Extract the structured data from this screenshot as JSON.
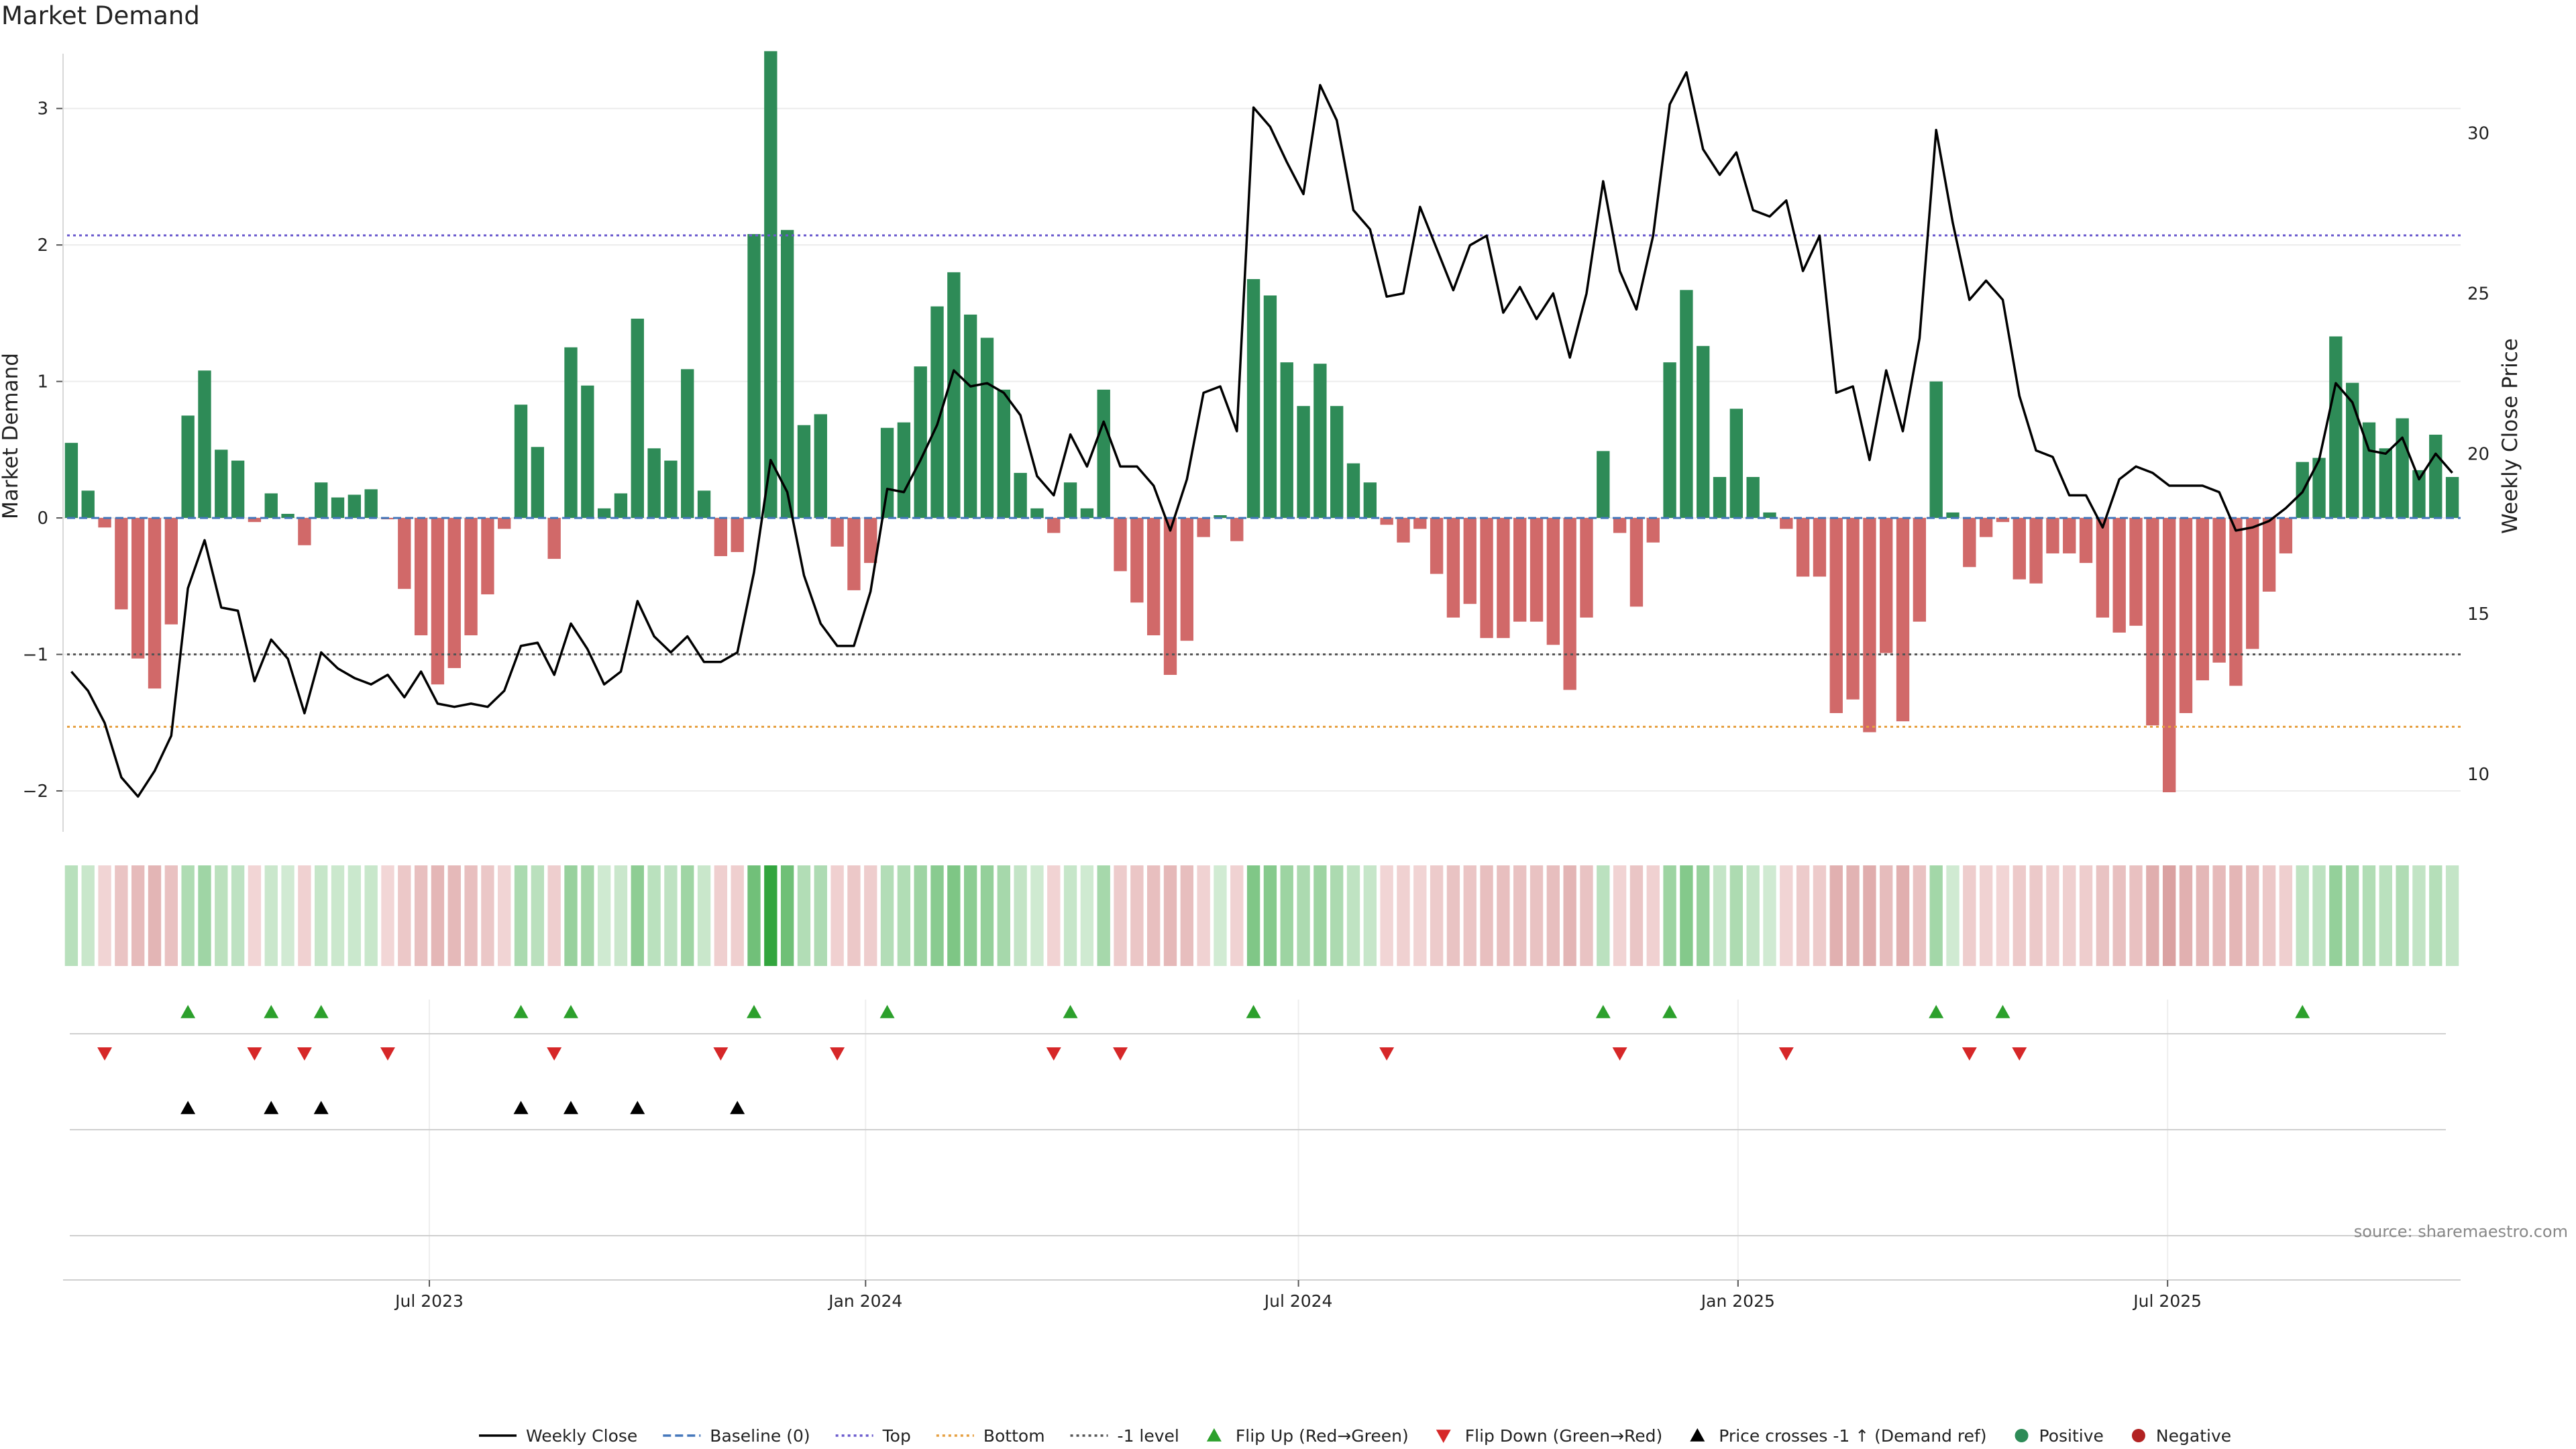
{
  "title": "Market Demand",
  "source": "source: sharemaestro.com",
  "colors": {
    "positive": "#2e8b57",
    "negative": "#cd5c5c",
    "price": "#000000",
    "top": "#6a5acd",
    "bottom": "#e6a040",
    "minus1": "#555555",
    "flip_up": "#2ca02c",
    "flip_down": "#d62728",
    "cross": "#000000"
  },
  "chart_data": {
    "type": "bar+line",
    "title": "Market Demand",
    "ylabel": "Market Demand",
    "y2label": "Weekly Close Price",
    "ylim": [
      -2.3,
      3.5
    ],
    "y2lim": [
      8.2,
      32.9
    ],
    "yticks": [
      -2,
      -1,
      0,
      1,
      2,
      3
    ],
    "ytick_labels": [
      "−2",
      "−1",
      "0",
      "1",
      "2",
      "3"
    ],
    "y2ticks": [
      10,
      15,
      20,
      25,
      30
    ],
    "y2tick_labels": [
      "10",
      "15",
      "20",
      "25",
      "30"
    ],
    "x_range_weeks": [
      0,
      144
    ],
    "xticks": [
      {
        "label": "Jul 2023",
        "week": 22
      },
      {
        "label": "Jan 2024",
        "week": 48.2
      },
      {
        "label": "Jul 2024",
        "week": 74.2
      },
      {
        "label": "Jan 2025",
        "week": 100.6
      },
      {
        "label": "Jul 2025",
        "week": 126.4
      }
    ],
    "reference_lines": [
      {
        "name": "Baseline (0)",
        "value": 0
      },
      {
        "name": "Top",
        "value": 2.07
      },
      {
        "name": "Bottom",
        "value": -1.53
      },
      {
        "name": "-1 level",
        "value": -1
      }
    ],
    "demand": [
      0.55,
      0.2,
      -0.07,
      -0.67,
      -1.03,
      -1.25,
      -0.78,
      0.75,
      1.08,
      0.5,
      0.42,
      -0.03,
      0.18,
      0.03,
      -0.2,
      0.26,
      0.15,
      0.17,
      0.21,
      -0.01,
      -0.52,
      -0.86,
      -1.22,
      -1.1,
      -0.86,
      -0.56,
      -0.08,
      0.83,
      0.52,
      -0.3,
      1.25,
      0.97,
      0.07,
      0.18,
      1.46,
      0.51,
      0.42,
      1.09,
      0.2,
      -0.28,
      -0.25,
      2.08,
      3.42,
      2.11,
      0.68,
      0.76,
      -0.21,
      -0.53,
      -0.33,
      0.66,
      0.7,
      1.11,
      1.55,
      1.8,
      1.49,
      1.32,
      0.94,
      0.33,
      0.07,
      -0.11,
      0.26,
      0.07,
      0.94,
      -0.39,
      -0.62,
      -0.86,
      -1.15,
      -0.9,
      -0.14,
      0.02,
      -0.17,
      1.75,
      1.63,
      1.14,
      0.82,
      1.13,
      0.82,
      0.4,
      0.26,
      -0.05,
      -0.18,
      -0.08,
      -0.41,
      -0.73,
      -0.63,
      -0.88,
      -0.88,
      -0.76,
      -0.76,
      -0.93,
      -1.26,
      -0.73,
      0.49,
      -0.11,
      -0.65,
      -0.18,
      1.14,
      1.67,
      1.26,
      0.3,
      0.8,
      0.3,
      0.04,
      -0.08,
      -0.43,
      -0.43,
      -1.43,
      -1.33,
      -1.57,
      -0.99,
      -1.49,
      -0.76,
      1.0,
      0.04,
      -0.36,
      -0.14,
      -0.03,
      -0.45,
      -0.48,
      -0.26,
      -0.26,
      -0.33,
      -0.73,
      -0.84,
      -0.79,
      -1.52,
      -2.01,
      -1.43,
      -1.19,
      -1.06,
      -1.23,
      -0.96,
      -0.54,
      -0.26,
      0.41,
      0.44,
      1.33,
      0.99,
      0.7,
      0.51,
      0.73,
      0.35,
      0.61,
      0.3
    ],
    "weekly_close": [
      13.2,
      12.6,
      11.6,
      9.9,
      9.3,
      10.1,
      11.2,
      15.8,
      17.3,
      15.2,
      15.1,
      12.9,
      14.2,
      13.6,
      11.9,
      13.8,
      13.3,
      13.0,
      12.8,
      13.1,
      12.4,
      13.2,
      12.2,
      12.1,
      12.2,
      12.1,
      12.6,
      14.0,
      14.1,
      13.1,
      14.7,
      13.9,
      12.8,
      13.2,
      15.4,
      14.3,
      13.8,
      14.3,
      13.5,
      13.5,
      13.8,
      16.3,
      19.8,
      18.8,
      16.2,
      14.7,
      14.0,
      14.0,
      15.7,
      18.9,
      18.8,
      19.8,
      20.9,
      22.6,
      22.1,
      22.2,
      21.9,
      21.2,
      19.3,
      18.7,
      20.6,
      19.6,
      21.0,
      19.6,
      19.6,
      19.0,
      17.6,
      19.2,
      21.9,
      22.1,
      20.7,
      30.8,
      30.2,
      29.1,
      28.1,
      31.5,
      30.4,
      27.6,
      27.0,
      24.9,
      25.0,
      27.7,
      26.4,
      25.1,
      26.5,
      26.8,
      24.4,
      25.2,
      24.2,
      25.0,
      23.0,
      25.0,
      28.5,
      25.7,
      24.5,
      26.8,
      30.9,
      31.9,
      29.5,
      28.7,
      29.4,
      27.6,
      27.4,
      27.9,
      25.7,
      26.8,
      21.9,
      22.1,
      19.8,
      22.6,
      20.7,
      23.6,
      30.1,
      27.2,
      24.8,
      25.4,
      24.8,
      21.8,
      20.1,
      19.9,
      18.7,
      18.7,
      17.7,
      19.2,
      19.6,
      19.4,
      19.0,
      19.0,
      19.0,
      18.8,
      17.6,
      17.7,
      17.9,
      18.3,
      18.8,
      19.8,
      22.2,
      21.6,
      20.1,
      20.0,
      20.5,
      19.2,
      20.0,
      19.4
    ],
    "flip_up_weeks": [
      7,
      12,
      15,
      27,
      30,
      41,
      49,
      60,
      71,
      92,
      96,
      112,
      116,
      134
    ],
    "flip_down_weeks": [
      2,
      11,
      14,
      19,
      29,
      39,
      46,
      59,
      63,
      79,
      93,
      103,
      114,
      117
    ],
    "price_cross_weeks": [
      7,
      12,
      15,
      27,
      30,
      34,
      40
    ]
  },
  "legend": [
    {
      "label": "Weekly Close",
      "kind": "line",
      "color": "#000000",
      "dash": ""
    },
    {
      "label": "Baseline (0)",
      "kind": "line",
      "color": "#4477bb",
      "dash": "12,6"
    },
    {
      "label": "Top",
      "kind": "line",
      "color": "#6a5acd",
      "dash": "4,5"
    },
    {
      "label": "Bottom",
      "kind": "line",
      "color": "#e6a040",
      "dash": "4,5"
    },
    {
      "label": "-1 level",
      "kind": "line",
      "color": "#555555",
      "dash": "4,5"
    },
    {
      "label": "Flip Up (Red→Green)",
      "kind": "tri-up",
      "color": "#2ca02c"
    },
    {
      "label": "Flip Down (Green→Red)",
      "kind": "tri-down",
      "color": "#d62728"
    },
    {
      "label": "Price crosses -1 ↑ (Demand ref)",
      "kind": "tri-up",
      "color": "#000000"
    },
    {
      "label": "Positive",
      "kind": "dot",
      "color": "#2e8b57"
    },
    {
      "label": "Negative",
      "kind": "dot",
      "color": "#b22222"
    }
  ]
}
